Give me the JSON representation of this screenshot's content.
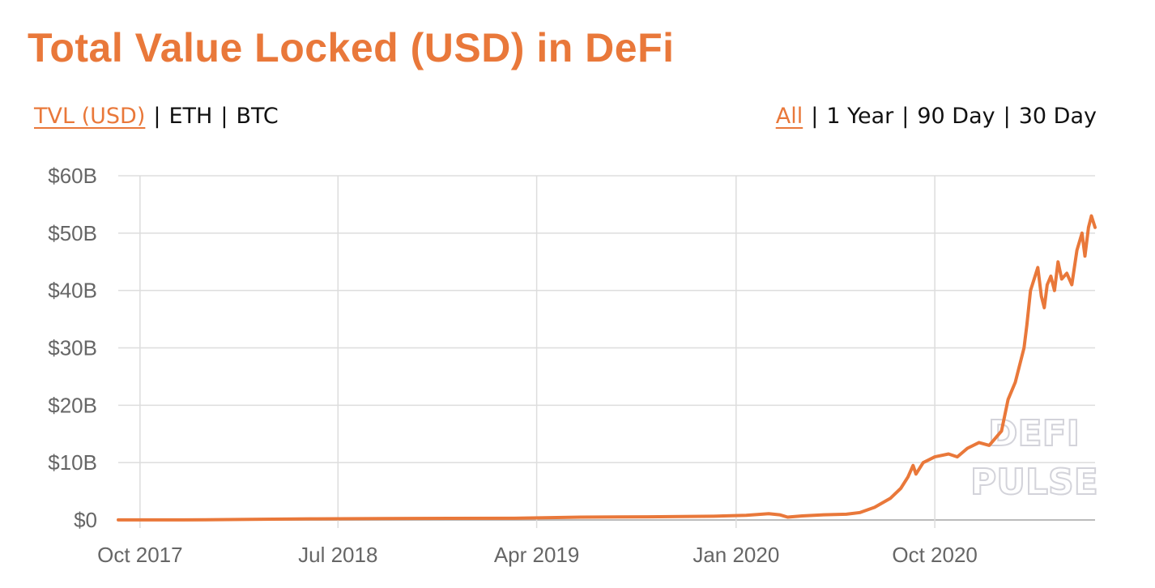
{
  "header": {
    "title": "Total Value Locked (USD) in DeFi"
  },
  "metric_options": [
    {
      "label": "TVL (USD)",
      "active": true
    },
    {
      "label": "ETH",
      "active": false
    },
    {
      "label": "BTC",
      "active": false
    }
  ],
  "range_options": [
    {
      "label": "All",
      "active": true
    },
    {
      "label": "1 Year",
      "active": false
    },
    {
      "label": "90 Day",
      "active": false
    },
    {
      "label": "30 Day",
      "active": false
    }
  ],
  "separator": "|",
  "watermark": {
    "line1": "DEFI",
    "line2": "PULSE"
  },
  "colors": {
    "accent": "#e9783a",
    "grid": "#dddddd",
    "tick": "#666666"
  },
  "chart_data": {
    "type": "line",
    "title": "Total Value Locked (USD) in DeFi",
    "xlabel": "",
    "ylabel": "",
    "ylim": [
      0,
      60
    ],
    "y_ticks": [
      0,
      10,
      20,
      30,
      40,
      50,
      60
    ],
    "y_tick_labels": [
      "$0",
      "$10B",
      "$20B",
      "$30B",
      "$40B",
      "$50B",
      "$60B"
    ],
    "x_ticks": [
      "2017-10-01",
      "2018-07-01",
      "2019-04-01",
      "2020-01-01",
      "2020-10-01"
    ],
    "x_tick_labels": [
      "Oct 2017",
      "Jul 2018",
      "Apr 2019",
      "Jan 2020",
      "Oct 2020"
    ],
    "xlim": [
      "2017-09-01",
      "2021-05-10"
    ],
    "grid": true,
    "series": [
      {
        "color": "#e9783a",
        "unit": "USD billions",
        "points": [
          [
            "2017-09-01",
            0.01
          ],
          [
            "2017-12-01",
            0.02
          ],
          [
            "2018-03-01",
            0.1
          ],
          [
            "2018-06-01",
            0.2
          ],
          [
            "2018-09-01",
            0.25
          ],
          [
            "2018-12-01",
            0.28
          ],
          [
            "2019-03-01",
            0.3
          ],
          [
            "2019-06-01",
            0.5
          ],
          [
            "2019-09-01",
            0.55
          ],
          [
            "2019-12-01",
            0.65
          ],
          [
            "2020-01-15",
            0.8
          ],
          [
            "2020-02-15",
            1.1
          ],
          [
            "2020-03-01",
            0.9
          ],
          [
            "2020-03-12",
            0.5
          ],
          [
            "2020-04-01",
            0.7
          ],
          [
            "2020-05-01",
            0.9
          ],
          [
            "2020-06-01",
            1.0
          ],
          [
            "2020-06-20",
            1.3
          ],
          [
            "2020-07-10",
            2.2
          ],
          [
            "2020-08-01",
            3.8
          ],
          [
            "2020-08-15",
            5.5
          ],
          [
            "2020-08-25",
            7.5
          ],
          [
            "2020-09-01",
            9.5
          ],
          [
            "2020-09-05",
            8.0
          ],
          [
            "2020-09-15",
            10.0
          ],
          [
            "2020-10-01",
            11.0
          ],
          [
            "2020-10-20",
            11.5
          ],
          [
            "2020-11-01",
            11.0
          ],
          [
            "2020-11-15",
            12.5
          ],
          [
            "2020-12-01",
            13.5
          ],
          [
            "2020-12-15",
            13.0
          ],
          [
            "2021-01-01",
            15.5
          ],
          [
            "2021-01-10",
            21.0
          ],
          [
            "2021-01-20",
            24.0
          ],
          [
            "2021-02-01",
            30.0
          ],
          [
            "2021-02-05",
            34.0
          ],
          [
            "2021-02-10",
            40.0
          ],
          [
            "2021-02-15",
            42.0
          ],
          [
            "2021-02-20",
            44.0
          ],
          [
            "2021-02-25",
            39.0
          ],
          [
            "2021-03-01",
            37.0
          ],
          [
            "2021-03-05",
            41.0
          ],
          [
            "2021-03-10",
            42.5
          ],
          [
            "2021-03-15",
            40.0
          ],
          [
            "2021-03-20",
            45.0
          ],
          [
            "2021-03-25",
            42.0
          ],
          [
            "2021-04-01",
            43.0
          ],
          [
            "2021-04-08",
            41.0
          ],
          [
            "2021-04-15",
            47.0
          ],
          [
            "2021-04-22",
            50.0
          ],
          [
            "2021-04-26",
            46.0
          ],
          [
            "2021-05-01",
            51.0
          ],
          [
            "2021-05-05",
            53.0
          ],
          [
            "2021-05-10",
            51.0
          ]
        ]
      }
    ]
  }
}
